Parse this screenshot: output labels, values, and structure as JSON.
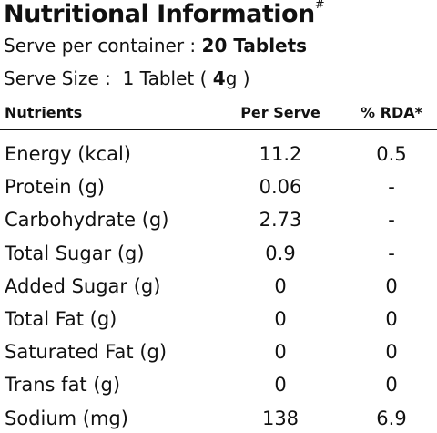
{
  "header": {
    "title": "Nutritional Information",
    "title_mark": "#",
    "serve_per_container": {
      "label": "Serve per container :",
      "value": "20 Tablets"
    },
    "serve_size": {
      "label": "Serve Size :",
      "pre": "1 Tablet (",
      "value": "4",
      "post": "g )"
    }
  },
  "table": {
    "columns": [
      "Nutrients",
      "Per Serve",
      "% RDA*"
    ],
    "rows": [
      [
        "Energy (kcal)",
        "11.2",
        "0.5"
      ],
      [
        "Protein (g)",
        "0.06",
        "-"
      ],
      [
        "Carbohydrate (g)",
        "2.73",
        "-"
      ],
      [
        "Total Sugar (g)",
        "0.9",
        "-"
      ],
      [
        "Added Sugar (g)",
        "0",
        "0"
      ],
      [
        "Total Fat (g)",
        "0",
        "0"
      ],
      [
        "Saturated Fat (g)",
        "0",
        "0"
      ],
      [
        "Trans fat (g)",
        "0",
        "0"
      ],
      [
        "Sodium (mg)",
        "138",
        "6.9"
      ]
    ]
  }
}
